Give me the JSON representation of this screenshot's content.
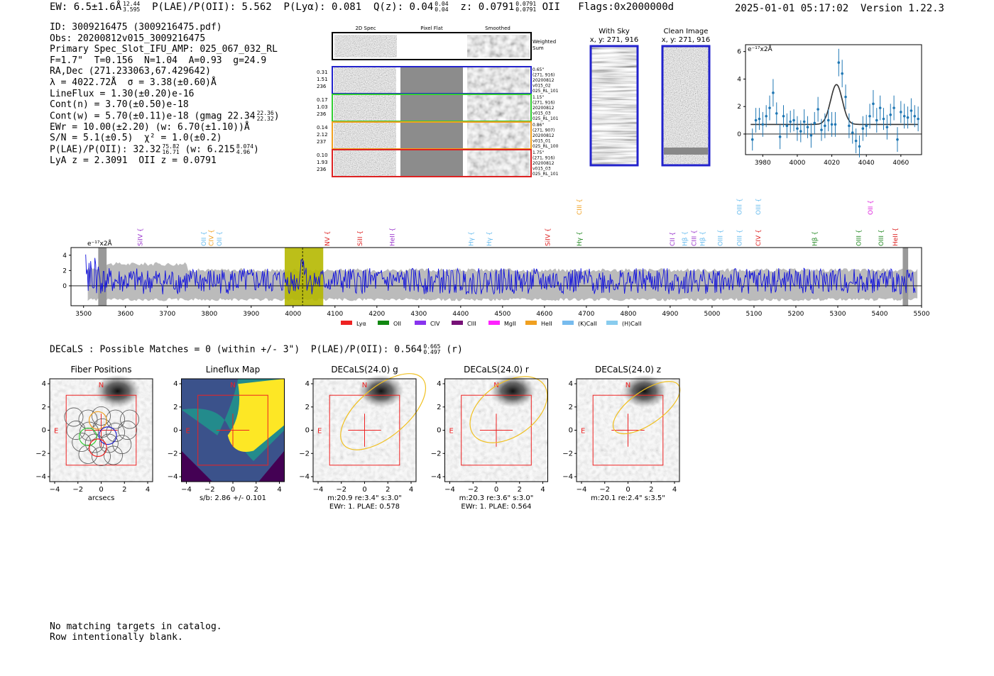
{
  "header": {
    "ew": "EW: 6.5±1.6Å",
    "ew_hi": "12.44",
    "ew_lo": "3.595",
    "plae_poii": "P(LAE)/P(OII): 5.562",
    "plya": "P(Lyα): 0.081",
    "qz": "Q(z): 0.04",
    "qz_hi": "0.04",
    "qz_lo": "0.04",
    "z": "z: 0.0791",
    "z_hi": "0.0791",
    "z_lo": "0.0791",
    "z_line": "OII",
    "flags": "Flags:0x2000000d",
    "timestamp": "2025-01-01 05:17:02  Version 1.22.3"
  },
  "info": {
    "id": "ID: 3009216475 (3009216475.pdf)",
    "obs": "Obs: 20200812v015_3009216475",
    "slot": "Primary Spec_Slot_IFU_AMP: 025_067_032_RL",
    "fit": "F=1.7\"  T=0.156  N=1.04  A=0.93  g=24.9",
    "radec": "RA,Dec (271.233063,67.429642)",
    "lambda": "λ = 4022.72Å  σ = 3.38(±0.60)Å",
    "lineflux": "LineFlux = 1.30(±0.20)e-16",
    "contn": "Cont(n) = 3.70(±0.50)e-18",
    "contw": "Cont(w) = 5.70(±0.11)e-18 (gmag 22.34",
    "contw_hi": "22.36",
    "contw_lo": "22.32",
    "ewr": "EWr = 10.00(±2.20) (w: 6.70(±1.10))Å",
    "sn": "S/N = 5.1(±0.5)  χ² = 1.0(±0.2)",
    "plae": "P(LAE)/P(OII): 32.32",
    "plae_hi": "75.82",
    "plae_lo": "16.71",
    "plae_w": "(w: 6.215",
    "plae_w_hi": "8.074",
    "plae_w_lo": "4.96",
    "lya_z": "LyA z = 2.3091  OII z = 0.0791"
  },
  "cutouts": {
    "col_2d": "2D Spec",
    "col_flat": "Pixel Flat",
    "col_smooth": "Smoothed",
    "weighted": "Weighted",
    "sum": "Sum",
    "rows": [
      {
        "l1": "0.31",
        "l2": "1.51",
        "l3": "236",
        "r1": "0.65\"",
        "r2": "(271, 916)",
        "r3": "20200812",
        "r4": "v015_02",
        "r5": "025_RL_101",
        "color": "#2222cc"
      },
      {
        "l1": "0.17",
        "l2": "1.03",
        "l3": "236",
        "r1": "1.15\"",
        "r2": "(271, 916)",
        "r3": "20200812",
        "r4": "v015_03",
        "r5": "025_RL_101",
        "color": "#33cc33"
      },
      {
        "l1": "0.14",
        "l2": "2.12",
        "l3": "237",
        "r1": "0.86\"",
        "r2": "(271, 907)",
        "r3": "20200812",
        "r4": "v015_01",
        "r5": "025_RL_100",
        "color": "#f0a020"
      },
      {
        "l1": "0.10",
        "l2": "1.93",
        "l3": "236",
        "r1": "1.75\"",
        "r2": "(271, 916)",
        "r3": "20200812",
        "r4": "v015_03",
        "r5": "025_RL_101",
        "color": "#dd2222"
      }
    ],
    "with_sky": "With Sky",
    "with_sky_xy": "x, y: 271, 916",
    "clean": "Clean Image",
    "clean_xy": "x, y: 271, 916"
  },
  "chart_data": [
    {
      "type": "scatter",
      "name": "line-fit",
      "ylabel": "e⁻¹⁷x2Å",
      "xlim": [
        3970,
        4072
      ],
      "ylim": [
        -1.5,
        6.5
      ],
      "xticks": [
        3980,
        4000,
        4020,
        4040,
        4060
      ],
      "yticks": [
        0,
        2,
        4,
        6
      ],
      "fit": {
        "center": 4022.7,
        "sigma": 3.38,
        "amplitude": 2.9,
        "continuum": 0.7
      },
      "x": [
        3974,
        3976,
        3978,
        3980,
        3982,
        3984,
        3986,
        3988,
        3990,
        3992,
        3994,
        3996,
        3998,
        4000,
        4002,
        4004,
        4006,
        4008,
        4010,
        4012,
        4014,
        4016,
        4018,
        4020,
        4022,
        4024,
        4026,
        4028,
        4030,
        4032,
        4034,
        4036,
        4038,
        4040,
        4042,
        4044,
        4046,
        4048,
        4050,
        4052,
        4054,
        4056,
        4058,
        4060,
        4062,
        4064,
        4066,
        4068,
        4070
      ],
      "y": [
        -0.4,
        1.0,
        1.1,
        0.7,
        1.3,
        1.9,
        3.0,
        1.5,
        -0.2,
        1.3,
        0.6,
        0.9,
        1.0,
        0.4,
        0.2,
        0.9,
        0.5,
        -0.1,
        0.8,
        1.8,
        0.3,
        0.6,
        1.0,
        0.7,
        0.7,
        5.2,
        4.4,
        2.7,
        0.6,
        0.1,
        -0.5,
        -0.9,
        0.4,
        0.6,
        1.3,
        2.2,
        1.0,
        1.9,
        1.1,
        0.5,
        1.4,
        1.9,
        -0.4,
        1.6,
        1.3,
        1.2,
        1.7,
        1.3,
        1.1
      ],
      "yerr": [
        0.8,
        0.9,
        0.8,
        0.9,
        0.8,
        0.9,
        1.0,
        0.8,
        0.9,
        0.8,
        0.9,
        0.8,
        0.8,
        0.9,
        0.8,
        0.9,
        0.8,
        0.9,
        0.8,
        0.9,
        0.8,
        0.9,
        0.8,
        0.9,
        0.9,
        1.0,
        1.0,
        0.9,
        0.9,
        0.8,
        0.9,
        0.8,
        0.9,
        0.8,
        0.9,
        1.0,
        0.9,
        0.9,
        0.8,
        0.9,
        0.8,
        0.9,
        0.9,
        0.8,
        0.9,
        0.8,
        0.9,
        0.8,
        0.9
      ]
    },
    {
      "type": "line",
      "name": "full-spectrum",
      "ylabel": "e⁻¹⁷x2Å",
      "xlim": [
        3470,
        5500
      ],
      "ylim": [
        -2.6,
        5.0
      ],
      "xticks": [
        3500,
        3600,
        3700,
        3800,
        3900,
        4000,
        4100,
        4200,
        4300,
        4400,
        4500,
        4600,
        4700,
        4800,
        4900,
        5000,
        5100,
        5200,
        5300,
        5400,
        5500
      ],
      "yticks": [
        0,
        2,
        4
      ],
      "highlight_band": [
        3980,
        4072
      ],
      "emission_line": 4022.7,
      "line_markers": [
        {
          "label": "SiIV",
          "x": 3635,
          "color": "#9933cc",
          "row": 0
        },
        {
          "label": "OII",
          "x": 3787,
          "color": "#66bbee",
          "row": 0
        },
        {
          "label": "CIV",
          "x": 3805,
          "color": "#f0a020",
          "row": 0
        },
        {
          "label": "OII",
          "x": 3824,
          "color": "#66bbee",
          "row": 0
        },
        {
          "label": "NV",
          "x": 4082,
          "color": "#dd2222",
          "row": 0
        },
        {
          "label": "SiII",
          "x": 4160,
          "color": "#dd2222",
          "row": 0
        },
        {
          "label": "HeII",
          "x": 4237,
          "color": "#9933cc",
          "row": 0
        },
        {
          "label": "Hγ",
          "x": 4425,
          "color": "#66bbee",
          "row": 0
        },
        {
          "label": "Hγ",
          "x": 4468,
          "color": "#66bbee",
          "row": 0
        },
        {
          "label": "SiIV",
          "x": 4608,
          "color": "#dd2222",
          "row": 0
        },
        {
          "label": "Hγ",
          "x": 4683,
          "color": "#228822",
          "row": 0
        },
        {
          "label": "CIII",
          "x": 4683,
          "color": "#f0a020",
          "row": 1
        },
        {
          "label": "CII",
          "x": 4905,
          "color": "#9933cc",
          "row": 0
        },
        {
          "label": "Hβ",
          "x": 4935,
          "color": "#66bbee",
          "row": 0
        },
        {
          "label": "CIII",
          "x": 4957,
          "color": "#9933cc",
          "row": 0
        },
        {
          "label": "Hβ",
          "x": 4977,
          "color": "#66bbee",
          "row": 0
        },
        {
          "label": "OIII",
          "x": 5020,
          "color": "#66bbee",
          "row": 0
        },
        {
          "label": "OIII",
          "x": 5065,
          "color": "#66bbee",
          "row": 0
        },
        {
          "label": "OIII",
          "x": 5065,
          "color": "#66bbee",
          "row": 1
        },
        {
          "label": "OIII",
          "x": 5110,
          "color": "#66bbee",
          "row": 1
        },
        {
          "label": "CIV",
          "x": 5110,
          "color": "#dd2222",
          "row": 0
        },
        {
          "label": "Hβ",
          "x": 5245,
          "color": "#228822",
          "row": 0
        },
        {
          "label": "OIII",
          "x": 5350,
          "color": "#228822",
          "row": 0
        },
        {
          "label": "OIII",
          "x": 5403,
          "color": "#228822",
          "row": 0
        },
        {
          "label": "HeII",
          "x": 5437,
          "color": "#dd2222",
          "row": 0
        },
        {
          "label": "OII",
          "x": 5378,
          "color": "#dd22dd",
          "row": 1
        }
      ],
      "legend": [
        {
          "label": "Lyα",
          "color": "#ee2222"
        },
        {
          "label": "OII",
          "color": "#118811"
        },
        {
          "label": "CIV",
          "color": "#8833ee"
        },
        {
          "label": "CIII",
          "color": "#771177"
        },
        {
          "label": "MgII",
          "color": "#ff22ff"
        },
        {
          "label": "HeII",
          "color": "#f0a020"
        },
        {
          "label": "(K)CaII",
          "color": "#77bbee"
        },
        {
          "label": "(H)CaII",
          "color": "#88ccee"
        }
      ]
    }
  ],
  "decals": {
    "summary": "DECaLS : Possible Matches = 0 (within +/- 3\")  P(LAE)/P(OII): 0.564",
    "summary_hi": "0.665",
    "summary_lo": "0.497",
    "summary_band": "(r)",
    "panels": [
      {
        "title": "Fiber Positions",
        "cap1": "arcsecs",
        "cap2": ""
      },
      {
        "title": "Lineflux Map",
        "cap1": "s/b: 2.86 +/- 0.101",
        "cap2": ""
      },
      {
        "title": "DECaLS(24.0) g",
        "cap1": "m:20.9  re:3.4\"  s:3.0\"",
        "cap2": "EWr: 1. PLAE: 0.578"
      },
      {
        "title": "DECaLS(24.0) r",
        "cap1": "m:20.3  re:3.6\"  s:3.0\"",
        "cap2": "EWr: 1. PLAE: 0.564"
      },
      {
        "title": "DECaLS(24.0) z",
        "cap1": "m:20.1  re:2.4\"  s:3.5\"",
        "cap2": ""
      }
    ],
    "axis_ticks": [
      "−4",
      "−2",
      "0",
      "2",
      "4"
    ],
    "north": "N",
    "east": "E"
  },
  "footer": {
    "line1": "No matching targets in catalog.",
    "line2": "Row intentionally blank."
  }
}
